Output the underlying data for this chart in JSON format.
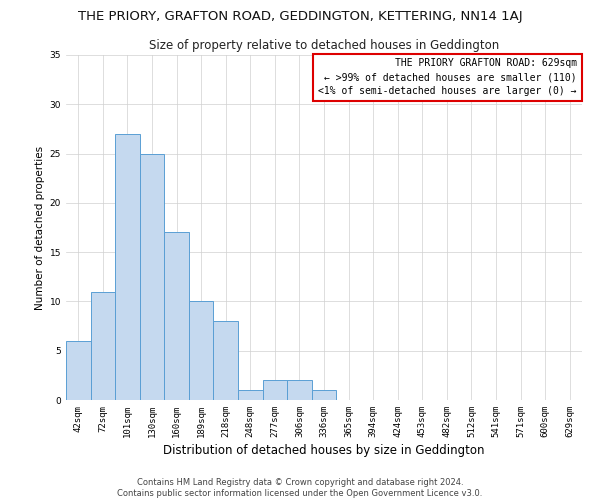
{
  "title": "THE PRIORY, GRAFTON ROAD, GEDDINGTON, KETTERING, NN14 1AJ",
  "subtitle": "Size of property relative to detached houses in Geddington",
  "xlabel": "Distribution of detached houses by size in Geddington",
  "ylabel": "Number of detached properties",
  "bar_values": [
    6,
    11,
    27,
    25,
    17,
    10,
    8,
    1,
    2,
    2,
    1,
    0,
    0,
    0,
    0,
    0,
    0,
    0,
    0,
    0,
    0
  ],
  "x_labels": [
    "42sqm",
    "72sqm",
    "101sqm",
    "130sqm",
    "160sqm",
    "189sqm",
    "218sqm",
    "248sqm",
    "277sqm",
    "306sqm",
    "336sqm",
    "365sqm",
    "394sqm",
    "424sqm",
    "453sqm",
    "482sqm",
    "512sqm",
    "541sqm",
    "571sqm",
    "600sqm",
    "629sqm"
  ],
  "bar_color": "#c5d9ef",
  "bar_edge_color": "#5a9fd4",
  "ylim": [
    0,
    35
  ],
  "yticks": [
    0,
    5,
    10,
    15,
    20,
    25,
    30,
    35
  ],
  "grid_color": "#d0d0d0",
  "background_color": "#ffffff",
  "legend_text_line1": "THE PRIORY GRAFTON ROAD: 629sqm",
  "legend_text_line2": "← >99% of detached houses are smaller (110)",
  "legend_text_line3": "<1% of semi-detached houses are larger (0) →",
  "legend_box_color": "#ffffff",
  "legend_box_edge_color": "#dd0000",
  "footer_line1": "Contains HM Land Registry data © Crown copyright and database right 2024.",
  "footer_line2": "Contains public sector information licensed under the Open Government Licence v3.0.",
  "title_fontsize": 9.5,
  "subtitle_fontsize": 8.5,
  "xlabel_fontsize": 8.5,
  "ylabel_fontsize": 7.5,
  "tick_fontsize": 6.5,
  "legend_fontsize": 7.0,
  "footer_fontsize": 6.0
}
